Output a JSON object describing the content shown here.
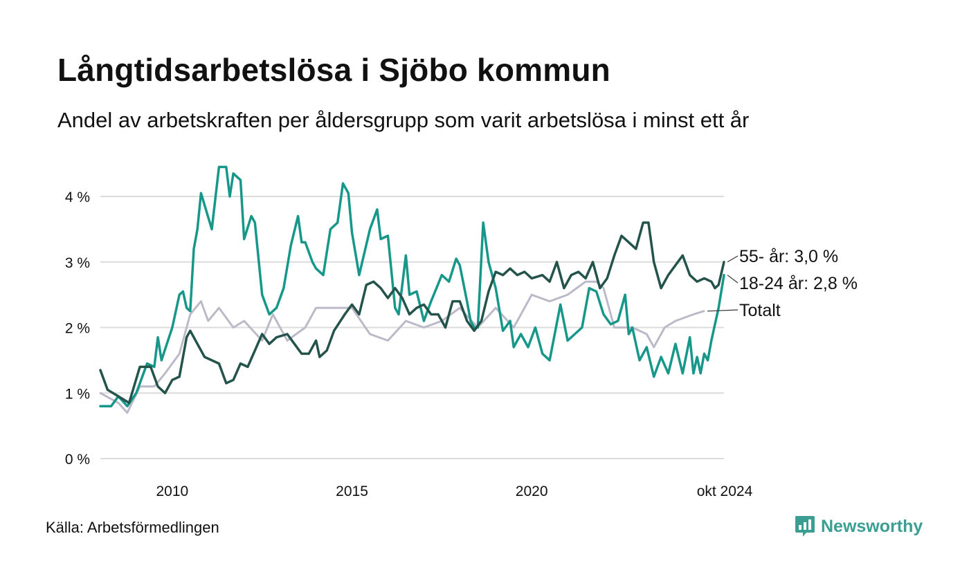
{
  "title": "Långtidsarbetslösa i Sjöbo kommun",
  "subtitle": "Andel av arbetskraften per åldersgrupp som varit arbetslösa i minst ett år",
  "source": "Källa: Arbetsförmedlingen",
  "brand": {
    "name": "Newsworthy",
    "icon": "newsworthy-logo-icon",
    "color": "#3a9e93"
  },
  "chart_data": {
    "type": "line",
    "x_unit": "year (decimal)",
    "xlim": [
      2008.0,
      2024.83
    ],
    "ylim": [
      0,
      4.5
    ],
    "grid": true,
    "legend": "direct labels at line ends",
    "y_ticks": [
      {
        "value": 0,
        "label": "0 %"
      },
      {
        "value": 1,
        "label": "1 %"
      },
      {
        "value": 2,
        "label": "2 %"
      },
      {
        "value": 3,
        "label": "3 %"
      },
      {
        "value": 4,
        "label": "4 %"
      }
    ],
    "x_ticks": [
      {
        "value": 2010,
        "label": "2010"
      },
      {
        "value": 2015,
        "label": "2015"
      },
      {
        "value": 2020,
        "label": "2020"
      },
      {
        "value": 2024.79,
        "label": "okt 2024"
      }
    ],
    "series": [
      {
        "key": "totalt",
        "label": "Totalt",
        "color": "#bcb9c8",
        "points": [
          [
            2008.0,
            1.0
          ],
          [
            2008.5,
            0.85
          ],
          [
            2008.75,
            0.7
          ],
          [
            2009.1,
            1.1
          ],
          [
            2009.5,
            1.1
          ],
          [
            2009.8,
            1.3
          ],
          [
            2010.2,
            1.6
          ],
          [
            2010.5,
            2.2
          ],
          [
            2010.8,
            2.4
          ],
          [
            2011.0,
            2.1
          ],
          [
            2011.3,
            2.3
          ],
          [
            2011.7,
            2.0
          ],
          [
            2012.0,
            2.1
          ],
          [
            2012.5,
            1.8
          ],
          [
            2012.8,
            2.2
          ],
          [
            2013.2,
            1.8
          ],
          [
            2013.7,
            2.0
          ],
          [
            2014.0,
            2.3
          ],
          [
            2014.5,
            2.3
          ],
          [
            2015.0,
            2.3
          ],
          [
            2015.5,
            1.9
          ],
          [
            2016.0,
            1.8
          ],
          [
            2016.5,
            2.1
          ],
          [
            2017.0,
            2.0
          ],
          [
            2017.5,
            2.1
          ],
          [
            2018.0,
            2.3
          ],
          [
            2018.5,
            2.0
          ],
          [
            2019.0,
            2.3
          ],
          [
            2019.5,
            2.0
          ],
          [
            2020.0,
            2.5
          ],
          [
            2020.5,
            2.4
          ],
          [
            2021.0,
            2.5
          ],
          [
            2021.5,
            2.7
          ],
          [
            2021.8,
            2.7
          ],
          [
            2022.0,
            2.6
          ],
          [
            2022.3,
            2.0
          ],
          [
            2022.8,
            2.0
          ],
          [
            2023.2,
            1.9
          ],
          [
            2023.4,
            1.7
          ],
          [
            2023.7,
            2.0
          ],
          [
            2024.0,
            2.1
          ],
          [
            2024.5,
            2.2
          ],
          [
            2024.79,
            2.25
          ]
        ]
      },
      {
        "key": "18-24",
        "label": "18-24 år: 2,8 %",
        "color": "#16978a",
        "points": [
          [
            2008.0,
            0.8
          ],
          [
            2008.3,
            0.8
          ],
          [
            2008.5,
            0.95
          ],
          [
            2008.75,
            0.8
          ],
          [
            2009.0,
            1.0
          ],
          [
            2009.3,
            1.45
          ],
          [
            2009.5,
            1.4
          ],
          [
            2009.6,
            1.85
          ],
          [
            2009.7,
            1.5
          ],
          [
            2010.0,
            2.0
          ],
          [
            2010.2,
            2.5
          ],
          [
            2010.3,
            2.55
          ],
          [
            2010.4,
            2.3
          ],
          [
            2010.5,
            2.25
          ],
          [
            2010.6,
            3.2
          ],
          [
            2010.7,
            3.5
          ],
          [
            2010.8,
            4.05
          ],
          [
            2011.1,
            3.5
          ],
          [
            2011.3,
            4.45
          ],
          [
            2011.5,
            4.45
          ],
          [
            2011.6,
            4.0
          ],
          [
            2011.7,
            4.35
          ],
          [
            2011.9,
            4.25
          ],
          [
            2012.0,
            3.35
          ],
          [
            2012.2,
            3.7
          ],
          [
            2012.3,
            3.6
          ],
          [
            2012.5,
            2.5
          ],
          [
            2012.7,
            2.2
          ],
          [
            2012.9,
            2.3
          ],
          [
            2013.1,
            2.6
          ],
          [
            2013.3,
            3.25
          ],
          [
            2013.5,
            3.7
          ],
          [
            2013.6,
            3.3
          ],
          [
            2013.7,
            3.3
          ],
          [
            2013.9,
            3.0
          ],
          [
            2014.0,
            2.9
          ],
          [
            2014.2,
            2.8
          ],
          [
            2014.4,
            3.5
          ],
          [
            2014.6,
            3.6
          ],
          [
            2014.75,
            4.2
          ],
          [
            2014.9,
            4.05
          ],
          [
            2015.0,
            3.45
          ],
          [
            2015.2,
            2.8
          ],
          [
            2015.5,
            3.5
          ],
          [
            2015.7,
            3.8
          ],
          [
            2015.8,
            3.35
          ],
          [
            2016.0,
            3.4
          ],
          [
            2016.2,
            2.3
          ],
          [
            2016.3,
            2.2
          ],
          [
            2016.5,
            3.1
          ],
          [
            2016.6,
            2.5
          ],
          [
            2016.8,
            2.55
          ],
          [
            2017.0,
            2.1
          ],
          [
            2017.2,
            2.4
          ],
          [
            2017.5,
            2.8
          ],
          [
            2017.7,
            2.7
          ],
          [
            2017.9,
            3.05
          ],
          [
            2018.0,
            2.95
          ],
          [
            2018.2,
            2.4
          ],
          [
            2018.3,
            2.1
          ],
          [
            2018.4,
            2.0
          ],
          [
            2018.5,
            2.0
          ],
          [
            2018.65,
            3.6
          ],
          [
            2018.8,
            3.0
          ],
          [
            2019.0,
            2.6
          ],
          [
            2019.2,
            1.95
          ],
          [
            2019.4,
            2.1
          ],
          [
            2019.5,
            1.7
          ],
          [
            2019.7,
            1.9
          ],
          [
            2019.9,
            1.7
          ],
          [
            2020.1,
            2.0
          ],
          [
            2020.3,
            1.6
          ],
          [
            2020.5,
            1.5
          ],
          [
            2020.8,
            2.35
          ],
          [
            2021.0,
            1.8
          ],
          [
            2021.2,
            1.9
          ],
          [
            2021.4,
            2.0
          ],
          [
            2021.6,
            2.6
          ],
          [
            2021.8,
            2.55
          ],
          [
            2022.0,
            2.2
          ],
          [
            2022.2,
            2.05
          ],
          [
            2022.4,
            2.1
          ],
          [
            2022.6,
            2.5
          ],
          [
            2022.7,
            1.9
          ],
          [
            2022.8,
            2.0
          ],
          [
            2023.0,
            1.5
          ],
          [
            2023.2,
            1.7
          ],
          [
            2023.4,
            1.25
          ],
          [
            2023.6,
            1.55
          ],
          [
            2023.8,
            1.3
          ],
          [
            2024.0,
            1.75
          ],
          [
            2024.2,
            1.3
          ],
          [
            2024.4,
            1.85
          ],
          [
            2024.5,
            1.3
          ],
          [
            2024.6,
            1.55
          ],
          [
            2024.7,
            1.3
          ],
          [
            2024.8,
            1.6
          ],
          [
            2024.9,
            1.5
          ],
          [
            2025.0,
            1.8
          ],
          [
            2025.2,
            2.3
          ],
          [
            2025.35,
            2.8
          ]
        ]
      },
      {
        "key": "55-",
        "label": "55- år: 3,0 %",
        "color": "#23534a",
        "points": [
          [
            2008.0,
            1.35
          ],
          [
            2008.2,
            1.05
          ],
          [
            2008.5,
            0.95
          ],
          [
            2008.8,
            0.85
          ],
          [
            2009.1,
            1.4
          ],
          [
            2009.4,
            1.4
          ],
          [
            2009.6,
            1.1
          ],
          [
            2009.8,
            1.0
          ],
          [
            2010.0,
            1.2
          ],
          [
            2010.2,
            1.25
          ],
          [
            2010.4,
            1.85
          ],
          [
            2010.5,
            1.95
          ],
          [
            2010.7,
            1.75
          ],
          [
            2010.9,
            1.55
          ],
          [
            2011.1,
            1.5
          ],
          [
            2011.3,
            1.45
          ],
          [
            2011.5,
            1.15
          ],
          [
            2011.7,
            1.2
          ],
          [
            2011.9,
            1.45
          ],
          [
            2012.1,
            1.4
          ],
          [
            2012.3,
            1.65
          ],
          [
            2012.5,
            1.9
          ],
          [
            2012.7,
            1.75
          ],
          [
            2012.9,
            1.85
          ],
          [
            2013.2,
            1.9
          ],
          [
            2013.4,
            1.75
          ],
          [
            2013.6,
            1.6
          ],
          [
            2013.8,
            1.6
          ],
          [
            2014.0,
            1.8
          ],
          [
            2014.1,
            1.55
          ],
          [
            2014.3,
            1.65
          ],
          [
            2014.5,
            1.95
          ],
          [
            2014.8,
            2.2
          ],
          [
            2015.0,
            2.35
          ],
          [
            2015.2,
            2.2
          ],
          [
            2015.4,
            2.65
          ],
          [
            2015.6,
            2.7
          ],
          [
            2015.8,
            2.6
          ],
          [
            2016.0,
            2.45
          ],
          [
            2016.2,
            2.6
          ],
          [
            2016.4,
            2.45
          ],
          [
            2016.6,
            2.2
          ],
          [
            2016.8,
            2.3
          ],
          [
            2017.0,
            2.35
          ],
          [
            2017.2,
            2.2
          ],
          [
            2017.4,
            2.2
          ],
          [
            2017.6,
            2.0
          ],
          [
            2017.8,
            2.4
          ],
          [
            2018.0,
            2.4
          ],
          [
            2018.2,
            2.1
          ],
          [
            2018.4,
            1.95
          ],
          [
            2018.6,
            2.1
          ],
          [
            2018.8,
            2.55
          ],
          [
            2019.0,
            2.85
          ],
          [
            2019.2,
            2.8
          ],
          [
            2019.4,
            2.9
          ],
          [
            2019.6,
            2.8
          ],
          [
            2019.8,
            2.85
          ],
          [
            2020.0,
            2.75
          ],
          [
            2020.3,
            2.8
          ],
          [
            2020.5,
            2.7
          ],
          [
            2020.7,
            3.0
          ],
          [
            2020.9,
            2.6
          ],
          [
            2021.1,
            2.8
          ],
          [
            2021.3,
            2.85
          ],
          [
            2021.5,
            2.75
          ],
          [
            2021.7,
            3.0
          ],
          [
            2021.9,
            2.6
          ],
          [
            2022.1,
            2.75
          ],
          [
            2022.3,
            3.1
          ],
          [
            2022.5,
            3.4
          ],
          [
            2022.7,
            3.3
          ],
          [
            2022.9,
            3.2
          ],
          [
            2023.1,
            3.6
          ],
          [
            2023.25,
            3.6
          ],
          [
            2023.4,
            3.0
          ],
          [
            2023.6,
            2.6
          ],
          [
            2023.8,
            2.8
          ],
          [
            2024.0,
            2.95
          ],
          [
            2024.2,
            3.1
          ],
          [
            2024.4,
            2.8
          ],
          [
            2024.6,
            2.7
          ],
          [
            2024.8,
            2.75
          ],
          [
            2025.0,
            2.7
          ],
          [
            2025.1,
            2.6
          ],
          [
            2025.2,
            2.65
          ],
          [
            2025.35,
            3.0
          ]
        ]
      }
    ],
    "end_labels": [
      {
        "key": "55-",
        "text": "55- år: 3,0 %"
      },
      {
        "key": "18-24",
        "text": "18-24 år: 2,8 %"
      },
      {
        "key": "totalt",
        "text": "Totalt"
      }
    ]
  }
}
